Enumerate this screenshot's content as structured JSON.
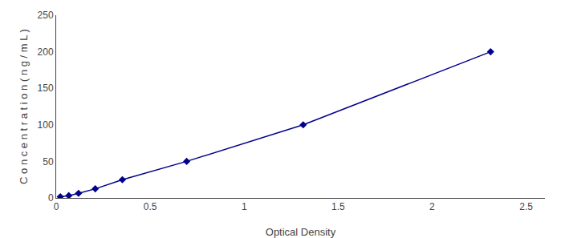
{
  "chart_data": {
    "type": "line",
    "x": [
      0.022,
      0.067,
      0.119,
      0.208,
      0.352,
      0.694,
      1.314,
      2.311
    ],
    "values": [
      1.5625,
      3.125,
      6.25,
      12.5,
      25.0,
      50.0,
      100.0,
      200.0
    ],
    "color": "#00008B",
    "marker": "diamond",
    "line_style": "solid",
    "xlabel": "Optical Density",
    "ylabel": "C o n c e n t r a t i o n ( n g / m L )",
    "xlim": [
      0,
      2.6
    ],
    "ylim": [
      0,
      250
    ],
    "xticks": [
      0,
      0.5,
      1,
      1.5,
      2,
      2.5
    ],
    "yticks": [
      0,
      50,
      100,
      150,
      200,
      250
    ],
    "grid": false
  }
}
